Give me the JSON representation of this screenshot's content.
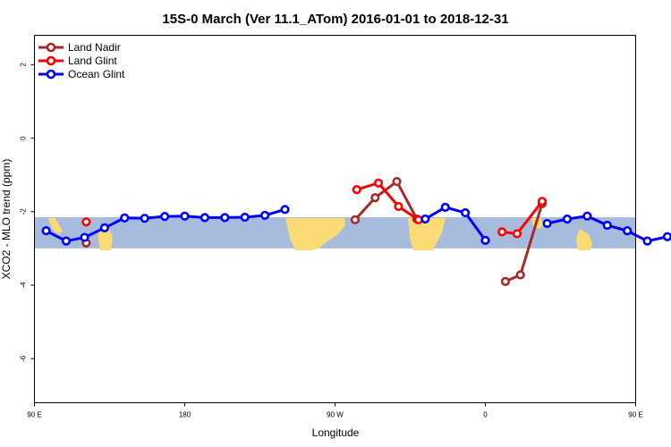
{
  "chart_data": {
    "type": "line",
    "title": "15S-0 March (Ver 11.1_ATom)   2016-01-01 to 2018-12-31",
    "xlabel": "Longitude",
    "ylabel": "XCO2 - MLO trend (ppm)",
    "xlim": [
      90,
      450
    ],
    "ylim": [
      -7.2,
      2.8
    ],
    "xticks": [
      {
        "value": 90,
        "label": "90 E"
      },
      {
        "value": 180,
        "label": "180"
      },
      {
        "value": 270,
        "label": "90 W"
      },
      {
        "value": 360,
        "label": "0"
      },
      {
        "value": 450,
        "label": "90 E"
      },
      {
        "value": 540,
        "label": "180"
      }
    ],
    "yticks": [
      {
        "value": 2,
        "label": "2"
      },
      {
        "value": 0,
        "label": "0"
      },
      {
        "value": -2,
        "label": "-2"
      },
      {
        "value": -4,
        "label": "-4"
      },
      {
        "value": -6,
        "label": "-6"
      }
    ],
    "band": {
      "ymin": -3.0,
      "ymax": -2.15
    },
    "series": [
      {
        "name": "Land Nadir",
        "color": "#a52a2a",
        "points": [
          [
            251.8,
            -2.22
          ],
          [
            252.5,
            -2.22
          ]
        ],
        "segments": [
          [
            [
              121,
              -2.85
            ]
          ],
          [
            [
              282,
              -2.22
            ],
            [
              294,
              -1.62
            ],
            [
              307,
              -1.18
            ],
            [
              319,
              -2.2
            ]
          ],
          [
            [
              372,
              -3.9
            ],
            [
              381,
              -3.72
            ],
            [
              394,
              -1.78
            ]
          ],
          [
            [
              492,
              -2.85
            ]
          ]
        ]
      },
      {
        "name": "Land Glint",
        "color": "#ff0000",
        "segments": [
          [
            [
              121,
              -2.28
            ]
          ],
          [
            [
              283,
              -1.4
            ],
            [
              296,
              -1.22
            ],
            [
              308,
              -1.86
            ],
            [
              320,
              -2.22
            ]
          ],
          [
            [
              370,
              -2.55
            ],
            [
              379,
              -2.6
            ],
            [
              394,
              -1.72
            ]
          ],
          [
            [
              492,
              -2.28
            ]
          ]
        ]
      },
      {
        "name": "Ocean Glint",
        "color": "#0000ff",
        "segments": [
          [
            [
              97,
              -2.52
            ],
            [
              109,
              -2.8
            ],
            [
              120,
              -2.7
            ],
            [
              132,
              -2.44
            ],
            [
              144,
              -2.17
            ],
            [
              156,
              -2.18
            ],
            [
              168,
              -2.13
            ],
            [
              180,
              -2.12
            ],
            [
              192,
              -2.16
            ],
            [
              204,
              -2.16
            ],
            [
              216,
              -2.15
            ],
            [
              228,
              -2.1
            ],
            [
              240,
              -1.94
            ]
          ],
          [
            [
              324,
              -2.2
            ],
            [
              336,
              -1.88
            ],
            [
              348,
              -2.03
            ],
            [
              360,
              -2.78
            ]
          ],
          [
            [
              397,
              -2.32
            ],
            [
              409,
              -2.2
            ],
            [
              421,
              -2.12
            ],
            [
              433,
              -2.37
            ],
            [
              445,
              -2.52
            ],
            [
              457,
              -2.8
            ],
            [
              469,
              -2.68
            ],
            [
              481,
              -2.43
            ],
            [
              493,
              -2.17
            ],
            [
              505,
              -2.2
            ]
          ]
        ]
      }
    ],
    "legend": {
      "position": "top-left",
      "entries": [
        "Land Nadir",
        "Land Glint",
        "Ocean Glint"
      ]
    }
  }
}
